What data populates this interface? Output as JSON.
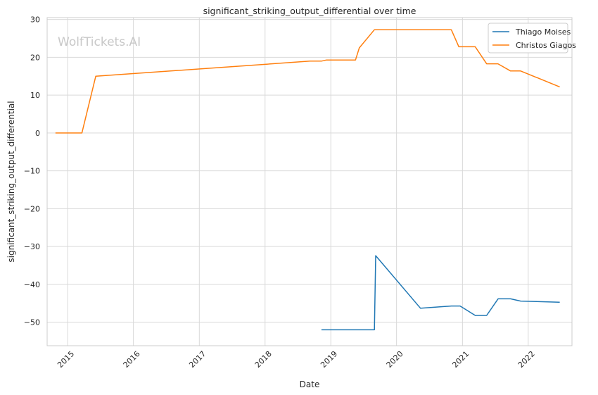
{
  "chart_data": {
    "type": "line",
    "title": "significant_striking_output_differential over time",
    "xlabel": "Date",
    "ylabel": "significant_striking_output_differential",
    "watermark": "WolfTickets.AI",
    "ylim": [
      -56.2,
      30.5
    ],
    "xlim": [
      "2014-09-09",
      "2022-09-01"
    ],
    "yticks": [
      30,
      20,
      10,
      0,
      -10,
      -20,
      -30,
      -40,
      -50
    ],
    "ytick_labels": [
      "30",
      "20",
      "10",
      "0",
      "−10",
      "−20",
      "−30",
      "−40",
      "−50"
    ],
    "xticks": [
      "2015-01-01",
      "2016-01-01",
      "2017-01-01",
      "2018-01-01",
      "2019-01-01",
      "2020-01-01",
      "2021-01-01",
      "2022-01-01"
    ],
    "xtick_labels": [
      "2015",
      "2016",
      "2017",
      "2018",
      "2019",
      "2020",
      "2021",
      "2022"
    ],
    "grid": true,
    "legend_position": "top-right",
    "series": [
      {
        "name": "Thiago Moises",
        "color": "#1f77b4",
        "points": [
          [
            "2018-11-10",
            -52.0
          ],
          [
            "2019-08-31",
            -52.0
          ],
          [
            "2019-09-07",
            -32.4
          ],
          [
            "2020-05-13",
            -46.3
          ],
          [
            "2020-10-31",
            -45.7
          ],
          [
            "2020-12-19",
            -45.7
          ],
          [
            "2021-03-13",
            -48.2
          ],
          [
            "2021-05-15",
            -48.2
          ],
          [
            "2021-07-18",
            -43.8
          ],
          [
            "2021-09-25",
            -43.8
          ],
          [
            "2021-11-20",
            -44.4
          ],
          [
            "2022-06-25",
            -44.7
          ]
        ]
      },
      {
        "name": "Christos Giagos",
        "color": "#ff7f0e",
        "points": [
          [
            "2014-10-25",
            0.0
          ],
          [
            "2015-03-21",
            0.0
          ],
          [
            "2015-06-06",
            15.0
          ],
          [
            "2018-09-08",
            19.0
          ],
          [
            "2018-11-10",
            19.0
          ],
          [
            "2018-12-08",
            19.3
          ],
          [
            "2019-05-18",
            19.3
          ],
          [
            "2019-06-08",
            22.5
          ],
          [
            "2019-08-31",
            27.3
          ],
          [
            "2020-10-31",
            27.3
          ],
          [
            "2020-12-12",
            22.8
          ],
          [
            "2021-03-13",
            22.8
          ],
          [
            "2021-05-15",
            18.3
          ],
          [
            "2021-07-17",
            18.3
          ],
          [
            "2021-09-25",
            16.4
          ],
          [
            "2021-11-20",
            16.4
          ],
          [
            "2022-06-25",
            12.2
          ]
        ]
      }
    ]
  }
}
